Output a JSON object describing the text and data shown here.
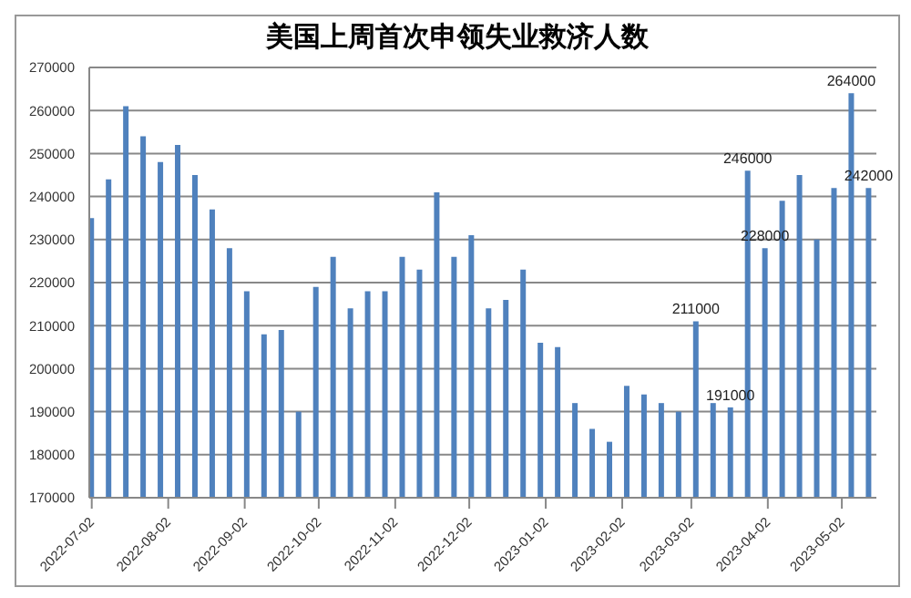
{
  "chart_data": {
    "type": "bar",
    "title": "美国上周首次申领失业救济人数",
    "x": [
      "2022-07-02",
      "2022-07-09",
      "2022-07-16",
      "2022-07-23",
      "2022-07-30",
      "2022-08-06",
      "2022-08-13",
      "2022-08-20",
      "2022-08-27",
      "2022-09-03",
      "2022-09-10",
      "2022-09-17",
      "2022-09-24",
      "2022-10-01",
      "2022-10-08",
      "2022-10-15",
      "2022-10-22",
      "2022-10-29",
      "2022-11-05",
      "2022-11-12",
      "2022-11-19",
      "2022-11-26",
      "2022-12-03",
      "2022-12-10",
      "2022-12-17",
      "2022-12-24",
      "2022-12-31",
      "2023-01-07",
      "2023-01-14",
      "2023-01-21",
      "2023-01-28",
      "2023-02-04",
      "2023-02-11",
      "2023-02-18",
      "2023-02-25",
      "2023-03-04",
      "2023-03-11",
      "2023-03-18",
      "2023-03-25",
      "2023-04-01",
      "2023-04-08",
      "2023-04-15",
      "2023-04-22",
      "2023-04-29",
      "2023-05-06",
      "2023-05-13"
    ],
    "values": [
      235000,
      244000,
      261000,
      254000,
      248000,
      252000,
      245000,
      237000,
      228000,
      218000,
      208000,
      209000,
      190000,
      219000,
      226000,
      214000,
      218000,
      218000,
      226000,
      223000,
      241000,
      226000,
      231000,
      214000,
      216000,
      223000,
      206000,
      205000,
      192000,
      186000,
      183000,
      196000,
      194000,
      192000,
      190000,
      211000,
      192000,
      191000,
      246000,
      228000,
      239000,
      245000,
      230000,
      242000,
      264000,
      242000
    ],
    "value_labels": [
      null,
      null,
      null,
      null,
      null,
      null,
      null,
      null,
      null,
      null,
      null,
      null,
      null,
      null,
      null,
      null,
      null,
      null,
      null,
      null,
      null,
      null,
      null,
      null,
      null,
      null,
      null,
      null,
      null,
      null,
      null,
      null,
      null,
      null,
      null,
      "211000",
      null,
      "191000",
      "246000",
      "228000",
      null,
      null,
      null,
      null,
      "264000",
      "242000"
    ],
    "color": "#4f81bd",
    "xlim": [
      "2022-07-01",
      "2023-05-16"
    ],
    "xticks": [
      "2022-07-02",
      "2022-08-02",
      "2022-09-02",
      "2022-10-02",
      "2022-11-02",
      "2022-12-02",
      "2023-01-02",
      "2023-02-02",
      "2023-03-02",
      "2023-04-02",
      "2023-05-02"
    ],
    "ylim": [
      170000,
      270000
    ],
    "yticks": [
      170000,
      180000,
      190000,
      200000,
      210000,
      220000,
      230000,
      240000,
      250000,
      260000,
      270000
    ],
    "grid": "y"
  }
}
